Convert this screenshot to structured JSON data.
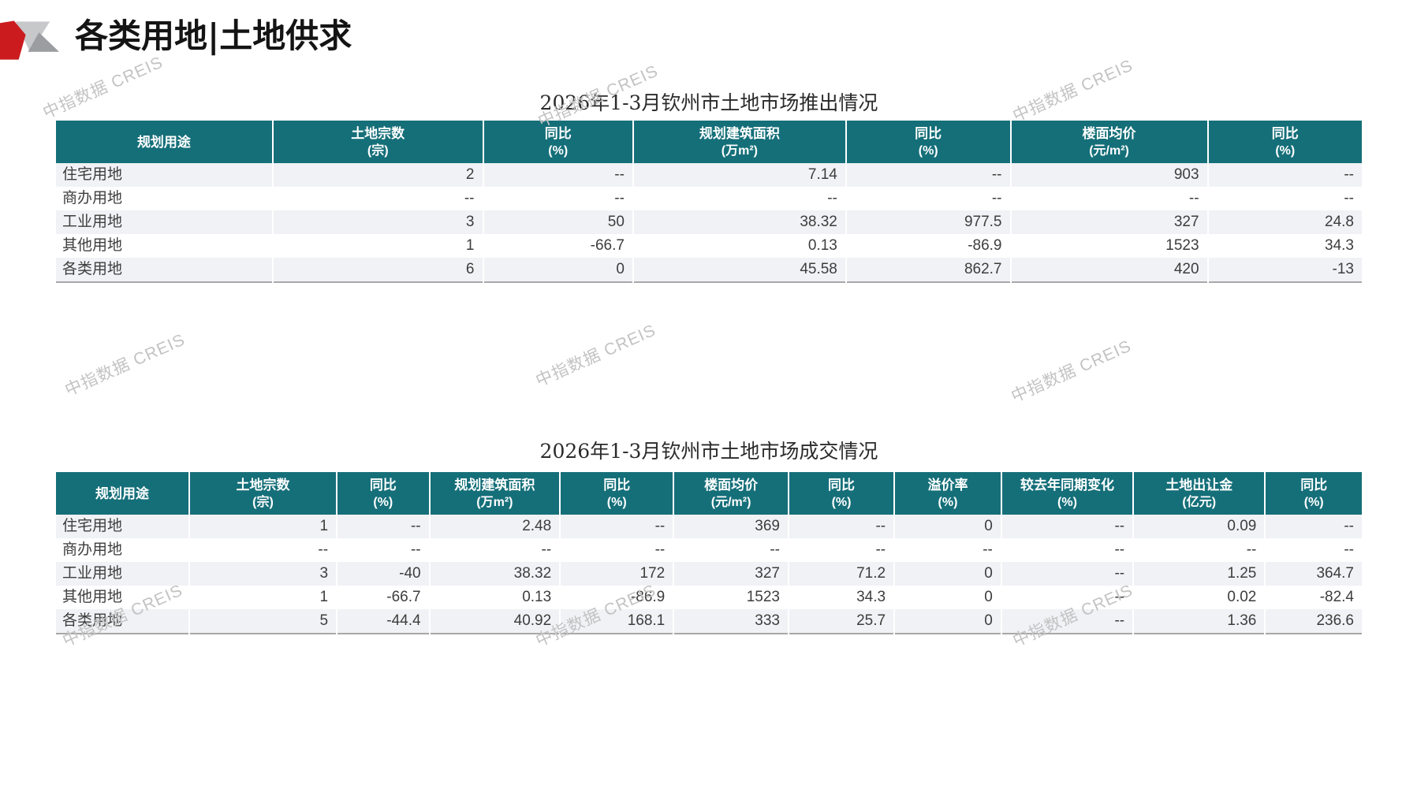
{
  "page_header": {
    "title": "各类用地|土地供求"
  },
  "watermark": {
    "text": "中指数据 CREIS"
  },
  "tables": [
    {
      "title": "2026年1-3月钦州市土地市场推出情况",
      "columns": [
        {
          "label": "规划用途",
          "unit": ""
        },
        {
          "label": "土地宗数",
          "unit": "(宗)"
        },
        {
          "label": "同比",
          "unit": "(%)"
        },
        {
          "label": "规划建筑面积",
          "unit": "(万m²)"
        },
        {
          "label": "同比",
          "unit": "(%)"
        },
        {
          "label": "楼面均价",
          "unit": "(元/m²)"
        },
        {
          "label": "同比",
          "unit": "(%)"
        }
      ],
      "rows": [
        [
          "住宅用地",
          "2",
          "--",
          "7.14",
          "--",
          "903",
          "--"
        ],
        [
          "商办用地",
          "--",
          "--",
          "--",
          "--",
          "--",
          "--"
        ],
        [
          "工业用地",
          "3",
          "50",
          "38.32",
          "977.5",
          "327",
          "24.8"
        ],
        [
          "其他用地",
          "1",
          "-66.7",
          "0.13",
          "-86.9",
          "1523",
          "34.3"
        ],
        [
          "各类用地",
          "6",
          "0",
          "45.58",
          "862.7",
          "420",
          "-13"
        ]
      ]
    },
    {
      "title": "2026年1-3月钦州市土地市场成交情况",
      "columns": [
        {
          "label": "规划用途",
          "unit": ""
        },
        {
          "label": "土地宗数",
          "unit": "(宗)"
        },
        {
          "label": "同比",
          "unit": "(%)"
        },
        {
          "label": "规划建筑面积",
          "unit": "(万m²)"
        },
        {
          "label": "同比",
          "unit": "(%)"
        },
        {
          "label": "楼面均价",
          "unit": "(元/m²)"
        },
        {
          "label": "同比",
          "unit": "(%)"
        },
        {
          "label": "溢价率",
          "unit": "(%)"
        },
        {
          "label": "较去年同期变化",
          "unit": "(%)"
        },
        {
          "label": "土地出让金",
          "unit": "(亿元)"
        },
        {
          "label": "同比",
          "unit": "(%)"
        }
      ],
      "rows": [
        [
          "住宅用地",
          "1",
          "--",
          "2.48",
          "--",
          "369",
          "--",
          "0",
          "--",
          "0.09",
          "--"
        ],
        [
          "商办用地",
          "--",
          "--",
          "--",
          "--",
          "--",
          "--",
          "--",
          "--",
          "--",
          "--"
        ],
        [
          "工业用地",
          "3",
          "-40",
          "38.32",
          "172",
          "327",
          "71.2",
          "0",
          "--",
          "1.25",
          "364.7"
        ],
        [
          "其他用地",
          "1",
          "-66.7",
          "0.13",
          "-86.9",
          "1523",
          "34.3",
          "0",
          "--",
          "0.02",
          "-82.4"
        ],
        [
          "各类用地",
          "5",
          "-44.4",
          "40.92",
          "168.1",
          "333",
          "25.7",
          "0",
          "--",
          "1.36",
          "236.6"
        ]
      ]
    }
  ],
  "colors": {
    "header_bg": "#156F79",
    "row_stripe": "#F0F2F5",
    "logo_red": "#CB1B1F",
    "logo_gray_light": "#C7C8CA",
    "logo_gray_dark": "#9B9DA0",
    "watermark_gray": "#C3C3C3"
  }
}
